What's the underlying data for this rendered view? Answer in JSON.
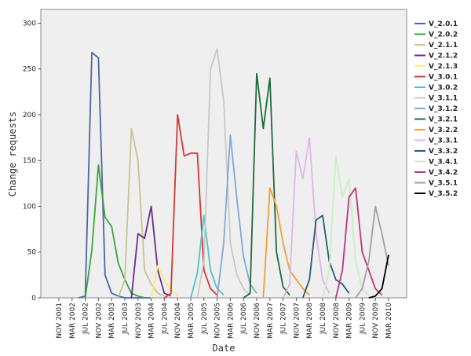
{
  "chart_data": {
    "type": "line",
    "x_label": "Date",
    "y_label": "Change requests",
    "categories": [
      "NOV 2001",
      null,
      "MAR 2002",
      null,
      "JUL 2002",
      null,
      "NOV 2002",
      null,
      "MAR 2003",
      null,
      "JUL 2003",
      null,
      "NOV 2003",
      null,
      "MAR 2004",
      null,
      "JUL 2004",
      null,
      "NOV 2004",
      null,
      "MAR 2005",
      null,
      "JUL 2005",
      null,
      "NOV 2005",
      null,
      "MAR 2006",
      null,
      "JUL 2006",
      null,
      "NOV 2006",
      null,
      "MAR 2007",
      null,
      "JUL 2007",
      null,
      "NOV 2007",
      null,
      "MAR 2008",
      null,
      "JUL 2008",
      null,
      "NOV 2008",
      null,
      "MAR 2009",
      null,
      "JUL 2009",
      null,
      "NOV 2009",
      null,
      "MAR 2010"
    ],
    "ylim": [
      0,
      315
    ],
    "yticks": [
      0,
      50,
      100,
      150,
      200,
      250,
      300
    ],
    "series": [
      {
        "name": "V_2.0.1",
        "color": "#4a67a8",
        "values": [
          null,
          null,
          null,
          0,
          2,
          268,
          262,
          25,
          5,
          2,
          0,
          0,
          0,
          0,
          0,
          null,
          null,
          null,
          null,
          null,
          null,
          null,
          null,
          null,
          null,
          null,
          null,
          null,
          null,
          null,
          null,
          null,
          null,
          null,
          null,
          null,
          null,
          null,
          null,
          null,
          null,
          null,
          null,
          null,
          null,
          null,
          null,
          null,
          null,
          null,
          null
        ]
      },
      {
        "name": "V_2.0.2",
        "color": "#3aa53a",
        "values": [
          null,
          null,
          null,
          null,
          0,
          52,
          145,
          88,
          78,
          38,
          20,
          5,
          2,
          0,
          null,
          null,
          null,
          null,
          null,
          null,
          null,
          null,
          null,
          null,
          null,
          null,
          null,
          null,
          null,
          null,
          null,
          null,
          null,
          null,
          null,
          null,
          null,
          null,
          null,
          null,
          null,
          null,
          null,
          null,
          null,
          null,
          null,
          null,
          null,
          null,
          null
        ]
      },
      {
        "name": "V_2.1.1",
        "color": "#c9c38f",
        "values": [
          null,
          null,
          null,
          null,
          null,
          null,
          null,
          null,
          null,
          0,
          20,
          185,
          150,
          30,
          15,
          5,
          2,
          null,
          null,
          null,
          null,
          null,
          null,
          null,
          null,
          null,
          null,
          null,
          null,
          null,
          null,
          null,
          null,
          null,
          null,
          null,
          null,
          null,
          null,
          null,
          null,
          null,
          null,
          null,
          null,
          null,
          null,
          null,
          null,
          null,
          null
        ]
      },
      {
        "name": "V_2.1.2",
        "color": "#6b2a8c",
        "values": [
          null,
          null,
          null,
          null,
          null,
          null,
          null,
          null,
          null,
          null,
          null,
          0,
          70,
          65,
          100,
          30,
          5,
          2,
          null,
          null,
          null,
          null,
          null,
          null,
          null,
          null,
          null,
          null,
          null,
          null,
          null,
          null,
          null,
          null,
          null,
          null,
          null,
          null,
          null,
          null,
          null,
          null,
          null,
          null,
          null,
          null,
          null,
          null,
          null,
          null,
          null
        ]
      },
      {
        "name": "V_2.1.3",
        "color": "#f5f07a",
        "values": [
          null,
          null,
          null,
          null,
          null,
          null,
          null,
          null,
          null,
          null,
          null,
          null,
          null,
          null,
          0,
          35,
          20,
          8,
          2,
          null,
          null,
          null,
          null,
          null,
          null,
          null,
          null,
          null,
          null,
          null,
          null,
          null,
          null,
          null,
          null,
          null,
          null,
          null,
          null,
          null,
          null,
          null,
          null,
          null,
          null,
          null,
          null,
          null,
          null,
          null,
          null
        ]
      },
      {
        "name": "V_3.0.1",
        "color": "#d93535",
        "values": [
          null,
          null,
          null,
          null,
          null,
          null,
          null,
          null,
          null,
          null,
          null,
          null,
          null,
          null,
          null,
          null,
          0,
          5,
          200,
          155,
          158,
          158,
          30,
          10,
          3,
          null,
          null,
          null,
          null,
          null,
          null,
          null,
          null,
          null,
          null,
          null,
          null,
          null,
          null,
          null,
          null,
          null,
          null,
          null,
          null,
          null,
          null,
          null,
          null,
          null,
          null
        ]
      },
      {
        "name": "V_3.0.2",
        "color": "#4ec4c4",
        "values": [
          null,
          null,
          null,
          null,
          null,
          null,
          null,
          null,
          null,
          null,
          null,
          null,
          null,
          null,
          null,
          null,
          null,
          null,
          null,
          null,
          0,
          27,
          90,
          30,
          10,
          3,
          null,
          null,
          null,
          null,
          null,
          null,
          null,
          null,
          null,
          null,
          null,
          null,
          null,
          null,
          null,
          null,
          null,
          null,
          null,
          null,
          null,
          null,
          null,
          null,
          null
        ]
      },
      {
        "name": "V_3.1.1",
        "color": "#c8c8c8",
        "values": [
          null,
          null,
          null,
          null,
          null,
          null,
          null,
          null,
          null,
          null,
          null,
          null,
          null,
          null,
          null,
          null,
          null,
          null,
          null,
          null,
          null,
          0,
          40,
          250,
          272,
          215,
          60,
          25,
          10,
          3,
          null,
          null,
          null,
          null,
          null,
          null,
          null,
          null,
          null,
          null,
          null,
          null,
          null,
          null,
          null,
          null,
          null,
          null,
          null,
          null,
          null
        ]
      },
      {
        "name": "V_3.1.2",
        "color": "#7fa9d6",
        "values": [
          null,
          null,
          null,
          null,
          null,
          null,
          null,
          null,
          null,
          null,
          null,
          null,
          null,
          null,
          null,
          null,
          null,
          null,
          null,
          null,
          null,
          null,
          null,
          null,
          0,
          60,
          178,
          108,
          45,
          15,
          5,
          null,
          null,
          null,
          null,
          null,
          null,
          null,
          null,
          null,
          null,
          null,
          null,
          null,
          null,
          null,
          null,
          null,
          null,
          null,
          null
        ]
      },
      {
        "name": "V_3.2.1",
        "color": "#1e6b3a",
        "values": [
          null,
          null,
          null,
          null,
          null,
          null,
          null,
          null,
          null,
          null,
          null,
          null,
          null,
          null,
          null,
          null,
          null,
          null,
          null,
          null,
          null,
          null,
          null,
          null,
          null,
          null,
          null,
          null,
          0,
          5,
          245,
          185,
          240,
          50,
          12,
          3,
          null,
          null,
          null,
          null,
          null,
          null,
          null,
          null,
          null,
          null,
          null,
          null,
          null,
          null,
          null
        ]
      },
      {
        "name": "V_3.2.2",
        "color": "#f0a030",
        "values": [
          null,
          null,
          null,
          null,
          null,
          null,
          null,
          null,
          null,
          null,
          null,
          null,
          null,
          null,
          null,
          null,
          null,
          null,
          null,
          null,
          null,
          null,
          null,
          null,
          null,
          null,
          null,
          null,
          null,
          null,
          null,
          0,
          120,
          100,
          60,
          30,
          20,
          10,
          3,
          null,
          null,
          null,
          null,
          null,
          null,
          null,
          null,
          null,
          null,
          null,
          null
        ]
      },
      {
        "name": "V_3.3.1",
        "color": "#e0b6ea",
        "values": [
          null,
          null,
          null,
          null,
          null,
          null,
          null,
          null,
          null,
          null,
          null,
          null,
          null,
          null,
          null,
          null,
          null,
          null,
          null,
          null,
          null,
          null,
          null,
          null,
          null,
          null,
          null,
          null,
          null,
          null,
          null,
          null,
          null,
          null,
          0,
          15,
          160,
          130,
          175,
          70,
          20,
          5,
          null,
          null,
          null,
          null,
          null,
          null,
          null,
          null,
          null
        ]
      },
      {
        "name": "V_3.3.2",
        "color": "#2a5a7a",
        "values": [
          null,
          null,
          null,
          null,
          null,
          null,
          null,
          null,
          null,
          null,
          null,
          null,
          null,
          null,
          null,
          null,
          null,
          null,
          null,
          null,
          null,
          null,
          null,
          null,
          null,
          null,
          null,
          null,
          null,
          null,
          null,
          null,
          null,
          null,
          null,
          null,
          null,
          0,
          20,
          85,
          90,
          40,
          20,
          15,
          5,
          null,
          null,
          null,
          null,
          null,
          null
        ]
      },
      {
        "name": "V_3.4.1",
        "color": "#c6f0bf",
        "values": [
          null,
          null,
          null,
          null,
          null,
          null,
          null,
          null,
          null,
          null,
          null,
          null,
          null,
          null,
          null,
          null,
          null,
          null,
          null,
          null,
          null,
          null,
          null,
          null,
          null,
          null,
          null,
          null,
          null,
          null,
          null,
          null,
          null,
          null,
          null,
          null,
          null,
          null,
          null,
          null,
          0,
          30,
          155,
          110,
          130,
          40,
          10,
          3,
          null,
          null,
          null
        ]
      },
      {
        "name": "V_3.4.2",
        "color": "#c0357a",
        "values": [
          null,
          null,
          null,
          null,
          null,
          null,
          null,
          null,
          null,
          null,
          null,
          null,
          null,
          null,
          null,
          null,
          null,
          null,
          null,
          null,
          null,
          null,
          null,
          null,
          null,
          null,
          null,
          null,
          null,
          null,
          null,
          null,
          null,
          null,
          null,
          null,
          null,
          null,
          null,
          null,
          null,
          null,
          0,
          30,
          110,
          120,
          50,
          30,
          10,
          3,
          null
        ]
      },
      {
        "name": "V_3.5.1",
        "color": "#a0a0a0",
        "values": [
          null,
          null,
          null,
          null,
          null,
          null,
          null,
          null,
          null,
          null,
          null,
          null,
          null,
          null,
          null,
          null,
          null,
          null,
          null,
          null,
          null,
          null,
          null,
          null,
          null,
          null,
          null,
          null,
          null,
          null,
          null,
          null,
          null,
          null,
          null,
          null,
          null,
          null,
          null,
          null,
          null,
          null,
          null,
          null,
          null,
          0,
          10,
          40,
          100,
          70,
          35
        ]
      },
      {
        "name": "V_3.5.2",
        "color": "#000000",
        "values": [
          null,
          null,
          null,
          null,
          null,
          null,
          null,
          null,
          null,
          null,
          null,
          null,
          null,
          null,
          null,
          null,
          null,
          null,
          null,
          null,
          null,
          null,
          null,
          null,
          null,
          null,
          null,
          null,
          null,
          null,
          null,
          null,
          null,
          null,
          null,
          null,
          null,
          null,
          null,
          null,
          null,
          null,
          null,
          null,
          null,
          null,
          null,
          0,
          2,
          10,
          47
        ]
      }
    ]
  }
}
